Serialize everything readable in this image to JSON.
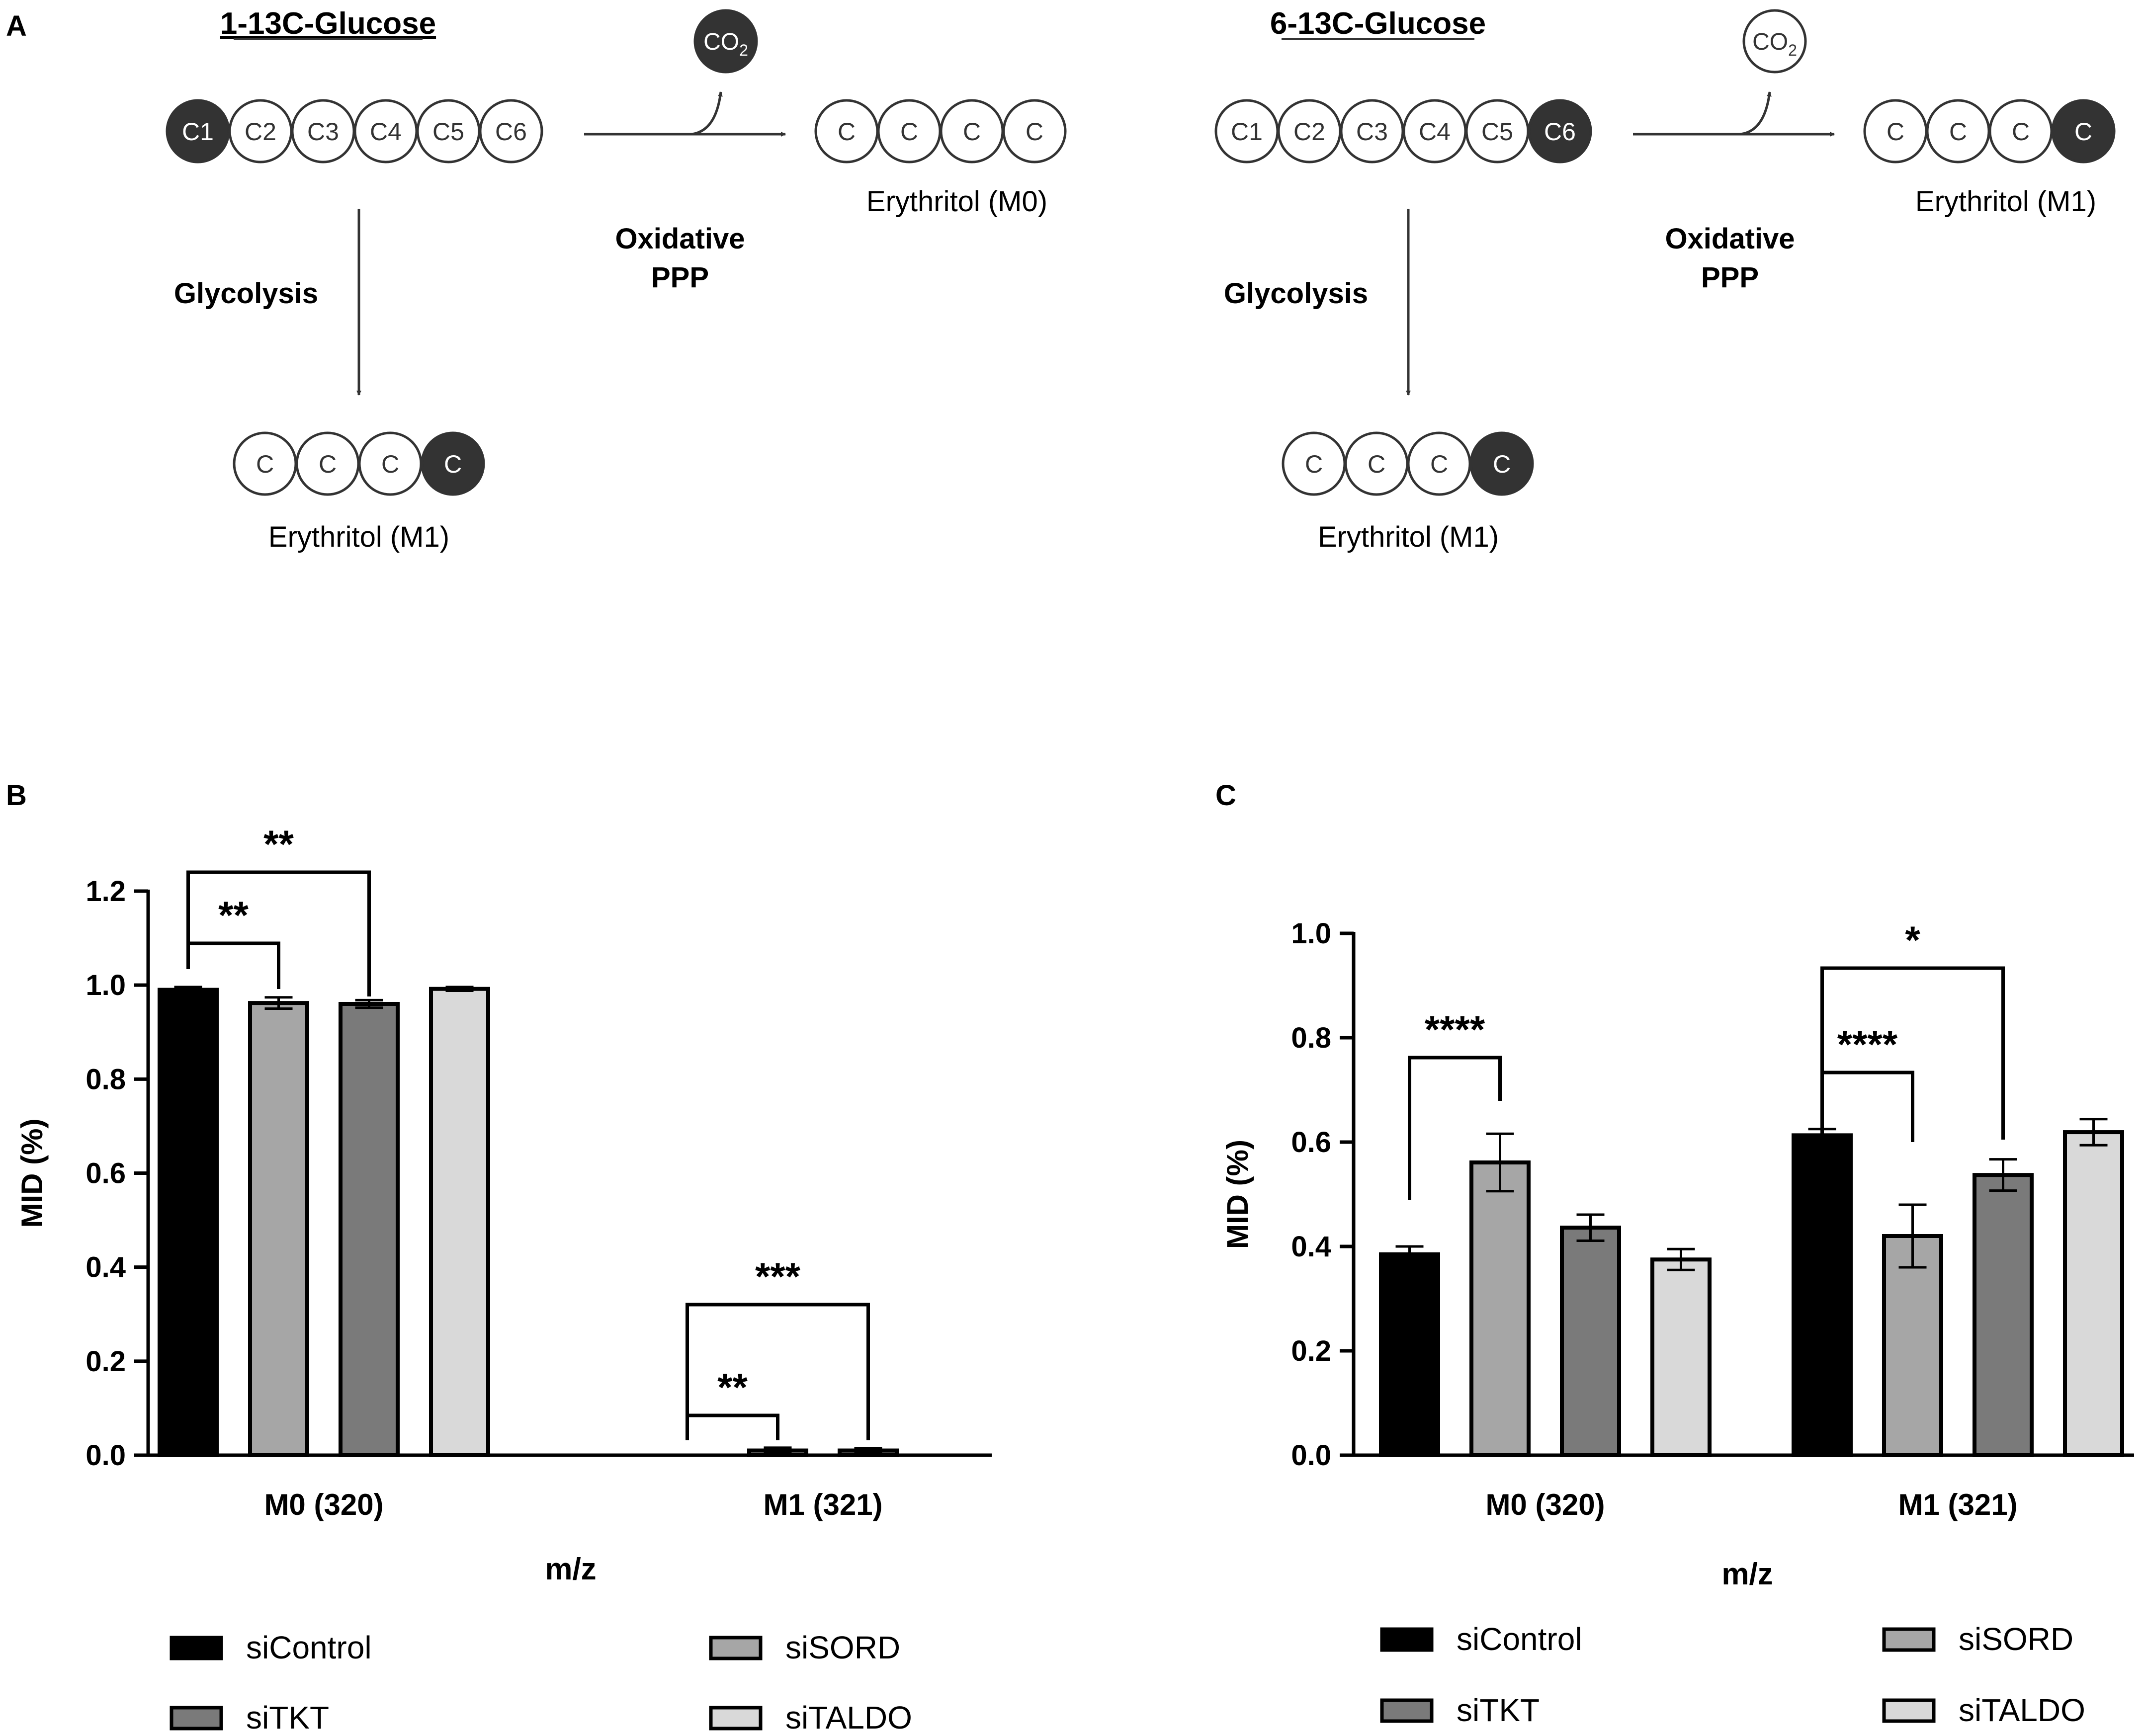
{
  "panels": {
    "A": {
      "label": "A",
      "left": {
        "title": "1-13C-Glucose",
        "glucose_atoms": [
          "C1",
          "C2",
          "C3",
          "C4",
          "C5",
          "C6"
        ],
        "labeled_atom_index": 0,
        "co2_text": "CO",
        "co2_subscript": "2",
        "co2_labeled": true,
        "oxidative_label_line1": "Oxidative",
        "oxidative_label_line2": "PPP",
        "ppp_product_atoms": [
          "C",
          "C",
          "C",
          "C"
        ],
        "ppp_product_labeled_index": -1,
        "ppp_product_label": "Erythritol (M0)",
        "glycolysis_label": "Glycolysis",
        "glyco_product_atoms": [
          "C",
          "C",
          "C",
          "C"
        ],
        "glyco_product_labeled_index": 3,
        "glyco_product_label": "Erythritol (M1)"
      },
      "right": {
        "title": "6-13C-Glucose",
        "glucose_atoms": [
          "C1",
          "C2",
          "C3",
          "C4",
          "C5",
          "C6"
        ],
        "labeled_atom_index": 5,
        "co2_text": "CO",
        "co2_subscript": "2",
        "co2_labeled": false,
        "oxidative_label_line1": "Oxidative",
        "oxidative_label_line2": "PPP",
        "ppp_product_atoms": [
          "C",
          "C",
          "C",
          "C"
        ],
        "ppp_product_labeled_index": 3,
        "ppp_product_label": "Erythritol (M1)",
        "glycolysis_label": "Glycolysis",
        "glyco_product_atoms": [
          "C",
          "C",
          "C",
          "C"
        ],
        "glyco_product_labeled_index": 3,
        "glyco_product_label": "Erythritol (M1)"
      }
    },
    "B": {
      "label": "B"
    },
    "C": {
      "label": "C"
    }
  },
  "colors": {
    "siControl": "#000000",
    "siSORD": "#a6a6a6",
    "siTKT": "#7a7a7a",
    "siTALDO": "#d9d9d9",
    "dark_atom": "#333333",
    "axis": "#000000"
  },
  "chart_data": [
    {
      "panel": "B",
      "type": "bar",
      "title": "",
      "xlabel": "m/z",
      "ylabel": "MID (%)",
      "ylim": [
        0,
        1.2
      ],
      "yticks": [
        "0.0",
        "0.2",
        "0.4",
        "0.6",
        "0.8",
        "1.0",
        "1.2"
      ],
      "categories": [
        "M0 (320)",
        "M1 (321)"
      ],
      "series": [
        {
          "name": "siControl",
          "values": [
            0.99,
            0.0
          ],
          "errors": [
            0.006,
            0.0
          ]
        },
        {
          "name": "siSORD",
          "values": [
            0.962,
            0.01
          ],
          "errors": [
            0.012,
            0.006
          ]
        },
        {
          "name": "siTKT",
          "values": [
            0.96,
            0.01
          ],
          "errors": [
            0.008,
            0.005
          ]
        },
        {
          "name": "siTALDO",
          "values": [
            0.992,
            0.0
          ],
          "errors": [
            0.004,
            0.0
          ]
        }
      ],
      "significance": [
        {
          "category": 0,
          "from": 0,
          "to": 1,
          "label": "**"
        },
        {
          "category": 0,
          "from": 0,
          "to": 2,
          "label": "**"
        },
        {
          "category": 1,
          "from": 0,
          "to": 1,
          "label": "**"
        },
        {
          "category": 1,
          "from": 0,
          "to": 2,
          "label": "***"
        }
      ],
      "legend": [
        {
          "name": "siControl",
          "position": "top-left"
        },
        {
          "name": "siSORD",
          "position": "top-right"
        },
        {
          "name": "siTKT",
          "position": "bottom-left"
        },
        {
          "name": "siTALDO",
          "position": "bottom-right"
        }
      ]
    },
    {
      "panel": "C",
      "type": "bar",
      "title": "",
      "xlabel": "m/z",
      "ylabel": "MID (%)",
      "ylim": [
        0,
        1.0
      ],
      "yticks": [
        "0.0",
        "0.2",
        "0.4",
        "0.6",
        "0.8",
        "1.0"
      ],
      "categories": [
        "M0 (320)",
        "M1 (321)"
      ],
      "series": [
        {
          "name": "siControl",
          "values": [
            0.385,
            0.613
          ],
          "errors": [
            0.015,
            0.012
          ]
        },
        {
          "name": "siSORD",
          "values": [
            0.561,
            0.42
          ],
          "errors": [
            0.055,
            0.06
          ]
        },
        {
          "name": "siTKT",
          "values": [
            0.436,
            0.537
          ],
          "errors": [
            0.025,
            0.03
          ]
        },
        {
          "name": "siTALDO",
          "values": [
            0.375,
            0.619
          ],
          "errors": [
            0.02,
            0.025
          ]
        }
      ],
      "significance": [
        {
          "category": 0,
          "from": 0,
          "to": 1,
          "label": "****"
        },
        {
          "category": 1,
          "from": 0,
          "to": 1,
          "label": "****"
        },
        {
          "category": 1,
          "from": 0,
          "to": 2,
          "label": "*"
        }
      ],
      "legend": [
        {
          "name": "siControl",
          "position": "top-left"
        },
        {
          "name": "siSORD",
          "position": "top-right"
        },
        {
          "name": "siTKT",
          "position": "bottom-left"
        },
        {
          "name": "siTALDO",
          "position": "bottom-right"
        }
      ]
    }
  ]
}
